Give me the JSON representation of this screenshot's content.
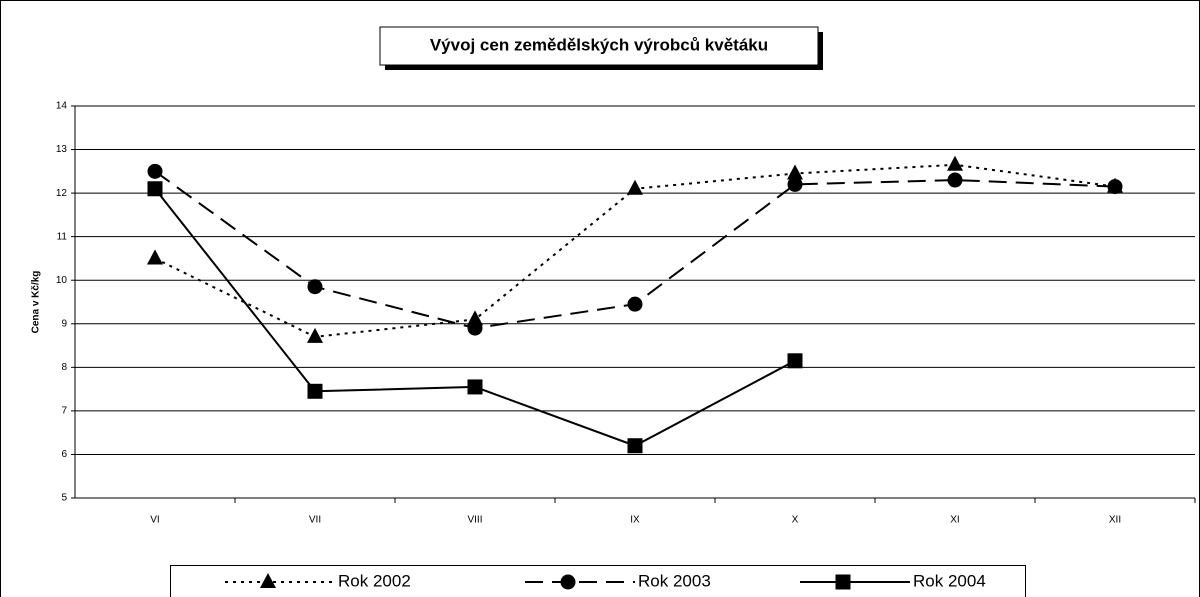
{
  "chart_data": {
    "type": "line",
    "title": "Vývoj cen zemědělských výrobců květáku",
    "y_label": "Cena v Kč/kg",
    "categories": [
      "VI",
      "VII",
      "VIII",
      "IX",
      "X",
      "XI",
      "XII"
    ],
    "series": [
      {
        "name": "Rok 2002",
        "color": "#000000",
        "marker": "triangle",
        "line_style": "dotted",
        "values": [
          10.5,
          8.7,
          9.1,
          12.1,
          12.45,
          12.65,
          12.15
        ]
      },
      {
        "name": "Rok 2003",
        "color": "#000000",
        "marker": "circle",
        "line_style": "dashed",
        "values": [
          12.5,
          9.85,
          8.9,
          9.45,
          12.2,
          12.3,
          12.15
        ]
      },
      {
        "name": "Rok 2004",
        "color": "#000000",
        "marker": "square",
        "line_style": "solid",
        "values": [
          12.1,
          7.45,
          7.55,
          6.2,
          8.15,
          null,
          null
        ]
      }
    ],
    "ylim": [
      5,
      14
    ],
    "yticks": [
      5,
      6,
      7,
      8,
      9,
      10,
      11,
      12,
      13,
      14
    ],
    "grid": true,
    "legend": "bottom"
  }
}
